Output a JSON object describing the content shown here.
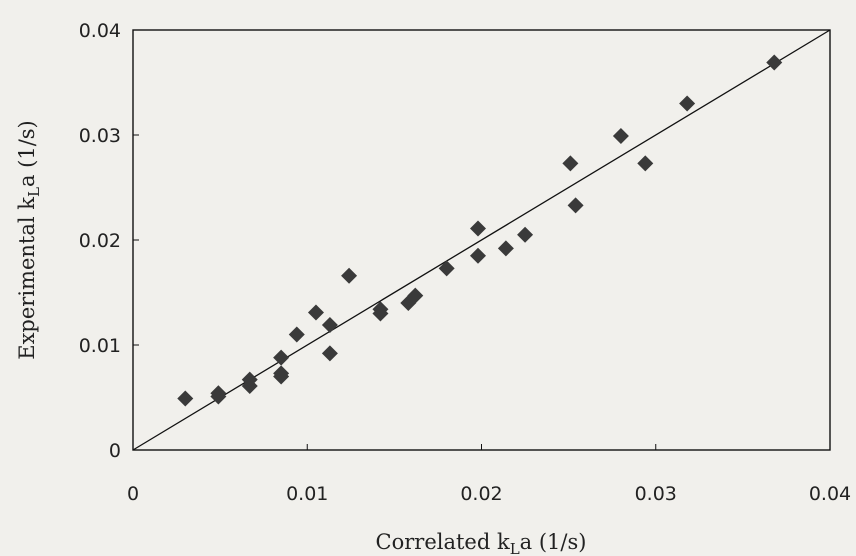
{
  "chart_data": {
    "type": "scatter",
    "title": "",
    "xlabel": "Correlated k",
    "xlabel_sub": "L",
    "xlabel_tail": "a (1/s)",
    "ylabel": "Experimental k",
    "ylabel_sub": "L",
    "ylabel_tail": "a (1/s)",
    "xlim": [
      0,
      0.04
    ],
    "ylim": [
      0,
      0.04
    ],
    "xticks": [
      0,
      0.01,
      0.02,
      0.03,
      0.04
    ],
    "yticks": [
      0,
      0.01,
      0.02,
      0.03,
      0.04
    ],
    "x_tick_labels": [
      "0",
      "0.01",
      "0.02",
      "0.03",
      "0.04"
    ],
    "y_tick_labels": [
      "0",
      "0.01",
      "0.02",
      "0.03",
      "0.04"
    ],
    "grid": false,
    "marker": "diamond",
    "marker_color": "#3a3a3a",
    "reference_line": {
      "x": [
        0,
        0.04
      ],
      "y": [
        0,
        0.04
      ]
    },
    "points": [
      {
        "x": 0.003,
        "y": 0.0049
      },
      {
        "x": 0.0049,
        "y": 0.0051
      },
      {
        "x": 0.0049,
        "y": 0.0054
      },
      {
        "x": 0.0067,
        "y": 0.0061
      },
      {
        "x": 0.0067,
        "y": 0.0067
      },
      {
        "x": 0.0085,
        "y": 0.007
      },
      {
        "x": 0.0085,
        "y": 0.0073
      },
      {
        "x": 0.0085,
        "y": 0.0088
      },
      {
        "x": 0.0094,
        "y": 0.011
      },
      {
        "x": 0.0105,
        "y": 0.0131
      },
      {
        "x": 0.0113,
        "y": 0.0119
      },
      {
        "x": 0.0113,
        "y": 0.0092
      },
      {
        "x": 0.0124,
        "y": 0.0166
      },
      {
        "x": 0.0142,
        "y": 0.013
      },
      {
        "x": 0.0142,
        "y": 0.0134
      },
      {
        "x": 0.0158,
        "y": 0.014
      },
      {
        "x": 0.0162,
        "y": 0.0147
      },
      {
        "x": 0.018,
        "y": 0.0173
      },
      {
        "x": 0.0198,
        "y": 0.0185
      },
      {
        "x": 0.0198,
        "y": 0.0211
      },
      {
        "x": 0.0214,
        "y": 0.0192
      },
      {
        "x": 0.0225,
        "y": 0.0205
      },
      {
        "x": 0.0251,
        "y": 0.0273
      },
      {
        "x": 0.0254,
        "y": 0.0233
      },
      {
        "x": 0.028,
        "y": 0.0299
      },
      {
        "x": 0.0294,
        "y": 0.0273
      },
      {
        "x": 0.0318,
        "y": 0.033
      },
      {
        "x": 0.0368,
        "y": 0.0369
      }
    ]
  }
}
